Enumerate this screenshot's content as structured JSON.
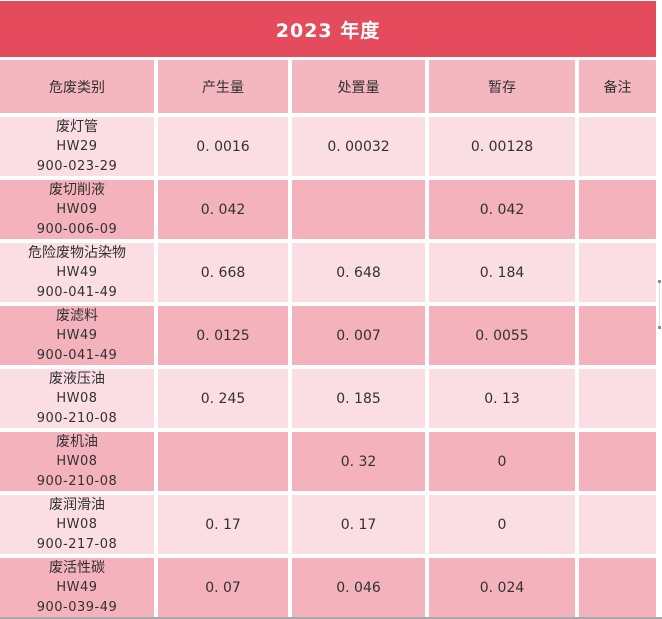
{
  "banner": {
    "title": "2023 年度"
  },
  "colors": {
    "banner_red": "#E44C5E",
    "header_pink": "#F4B6BF",
    "row_light": "#FBDEE3",
    "row_dark": "#F4B2BC",
    "text": "#323232"
  },
  "table": {
    "headers": [
      "危废类别",
      "产生量",
      "处置量",
      "暂存",
      "备注"
    ],
    "rows": [
      {
        "category": "废灯管",
        "hw": "HW29",
        "code": "900-023-29",
        "produced": "0. 0016",
        "disposed": "0. 00032",
        "stored": "0. 00128",
        "remark": ""
      },
      {
        "category": "废切削液",
        "hw": "HW09",
        "code": "900-006-09",
        "produced": "0. 042",
        "disposed": "",
        "stored": "0. 042",
        "remark": ""
      },
      {
        "category": "危险废物沾染物",
        "hw": "HW49",
        "code": "900-041-49",
        "produced": "0. 668",
        "disposed": "0. 648",
        "stored": "0. 184",
        "remark": ""
      },
      {
        "category": "废滤料",
        "hw": "HW49",
        "code": "900-041-49",
        "produced": "0. 0125",
        "disposed": "0. 007",
        "stored": "0. 0055",
        "remark": ""
      },
      {
        "category": "废液压油",
        "hw": "HW08",
        "code": "900-210-08",
        "produced": "0. 245",
        "disposed": "0. 185",
        "stored": "0. 13",
        "remark": ""
      },
      {
        "category": "废机油",
        "hw": "HW08",
        "code": "900-210-08",
        "produced": "",
        "disposed": "0. 32",
        "stored": "0",
        "remark": ""
      },
      {
        "category": "废润滑油",
        "hw": "HW08",
        "code": "900-217-08",
        "produced": "0. 17",
        "disposed": "0. 17",
        "stored": "0",
        "remark": ""
      },
      {
        "category": "废活性碳",
        "hw": "HW49",
        "code": "900-039-49",
        "produced": "0. 07",
        "disposed": "0. 046",
        "stored": "0. 024",
        "remark": ""
      }
    ]
  }
}
